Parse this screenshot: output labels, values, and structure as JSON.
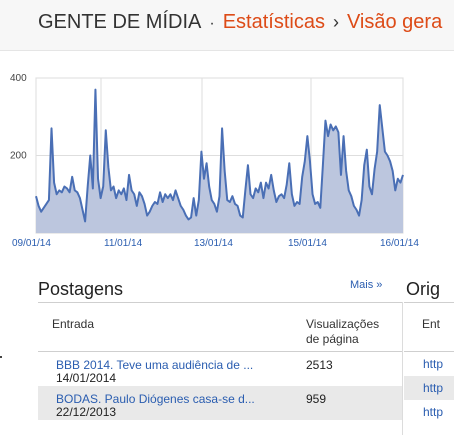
{
  "header": {
    "blog_name": "GENTE DE MÍDIA",
    "sep_dot": "·",
    "crumb_stats": "Estatísticas",
    "sep_arrow": "›",
    "crumb_overview": "Visão gera"
  },
  "chart_data": {
    "type": "area",
    "y_ticks": [
      "400",
      "200"
    ],
    "ylim": [
      0,
      400
    ],
    "x_tick_labels": [
      "09/01/14",
      "11/01/14",
      "13/01/14",
      "15/01/14",
      "16/01/14"
    ],
    "values": [
      95,
      70,
      55,
      65,
      75,
      85,
      270,
      130,
      100,
      110,
      105,
      120,
      115,
      105,
      145,
      110,
      105,
      90,
      60,
      30,
      120,
      200,
      115,
      370,
      140,
      90,
      120,
      265,
      170,
      110,
      120,
      90,
      110,
      100,
      115,
      85,
      150,
      110,
      100,
      70,
      105,
      95,
      75,
      45,
      55,
      70,
      80,
      75,
      105,
      80,
      100,
      90,
      100,
      85,
      110,
      90,
      70,
      60,
      45,
      35,
      40,
      90,
      45,
      85,
      210,
      140,
      180,
      120,
      85,
      75,
      55,
      95,
      270,
      160,
      85,
      80,
      95,
      75,
      70,
      45,
      40,
      110,
      175,
      100,
      90,
      115,
      105,
      130,
      90,
      130,
      115,
      150,
      110,
      80,
      95,
      100,
      90,
      125,
      180,
      100,
      70,
      80,
      75,
      145,
      185,
      250,
      185,
      100,
      75,
      80,
      65,
      175,
      290,
      250,
      280,
      265,
      275,
      260,
      150,
      250,
      160,
      110,
      95,
      70,
      60,
      45,
      85,
      175,
      215,
      120,
      100,
      165,
      210,
      330,
      270,
      210,
      200,
      185,
      160,
      110,
      140,
      130,
      150
    ],
    "series_color": "#4a6fb5",
    "fill_color": "#bcc6de",
    "grid": true
  },
  "posts": {
    "title": "Postagens",
    "more": "Mais »",
    "col_entry": "Entrada",
    "col_views_1": "Visualizações",
    "col_views_2": "de página",
    "rows": [
      {
        "title": "BBB 2014. Teve uma audiência de ...",
        "date": "14/01/2014",
        "views": "2513"
      },
      {
        "title": "BODAS. Paulo Diógenes casa-se d...",
        "date": "22/12/2013",
        "views": "959"
      }
    ]
  },
  "origins": {
    "title": "Orig",
    "col_entry": "Ent",
    "rows": [
      "http",
      "http",
      "http"
    ]
  }
}
